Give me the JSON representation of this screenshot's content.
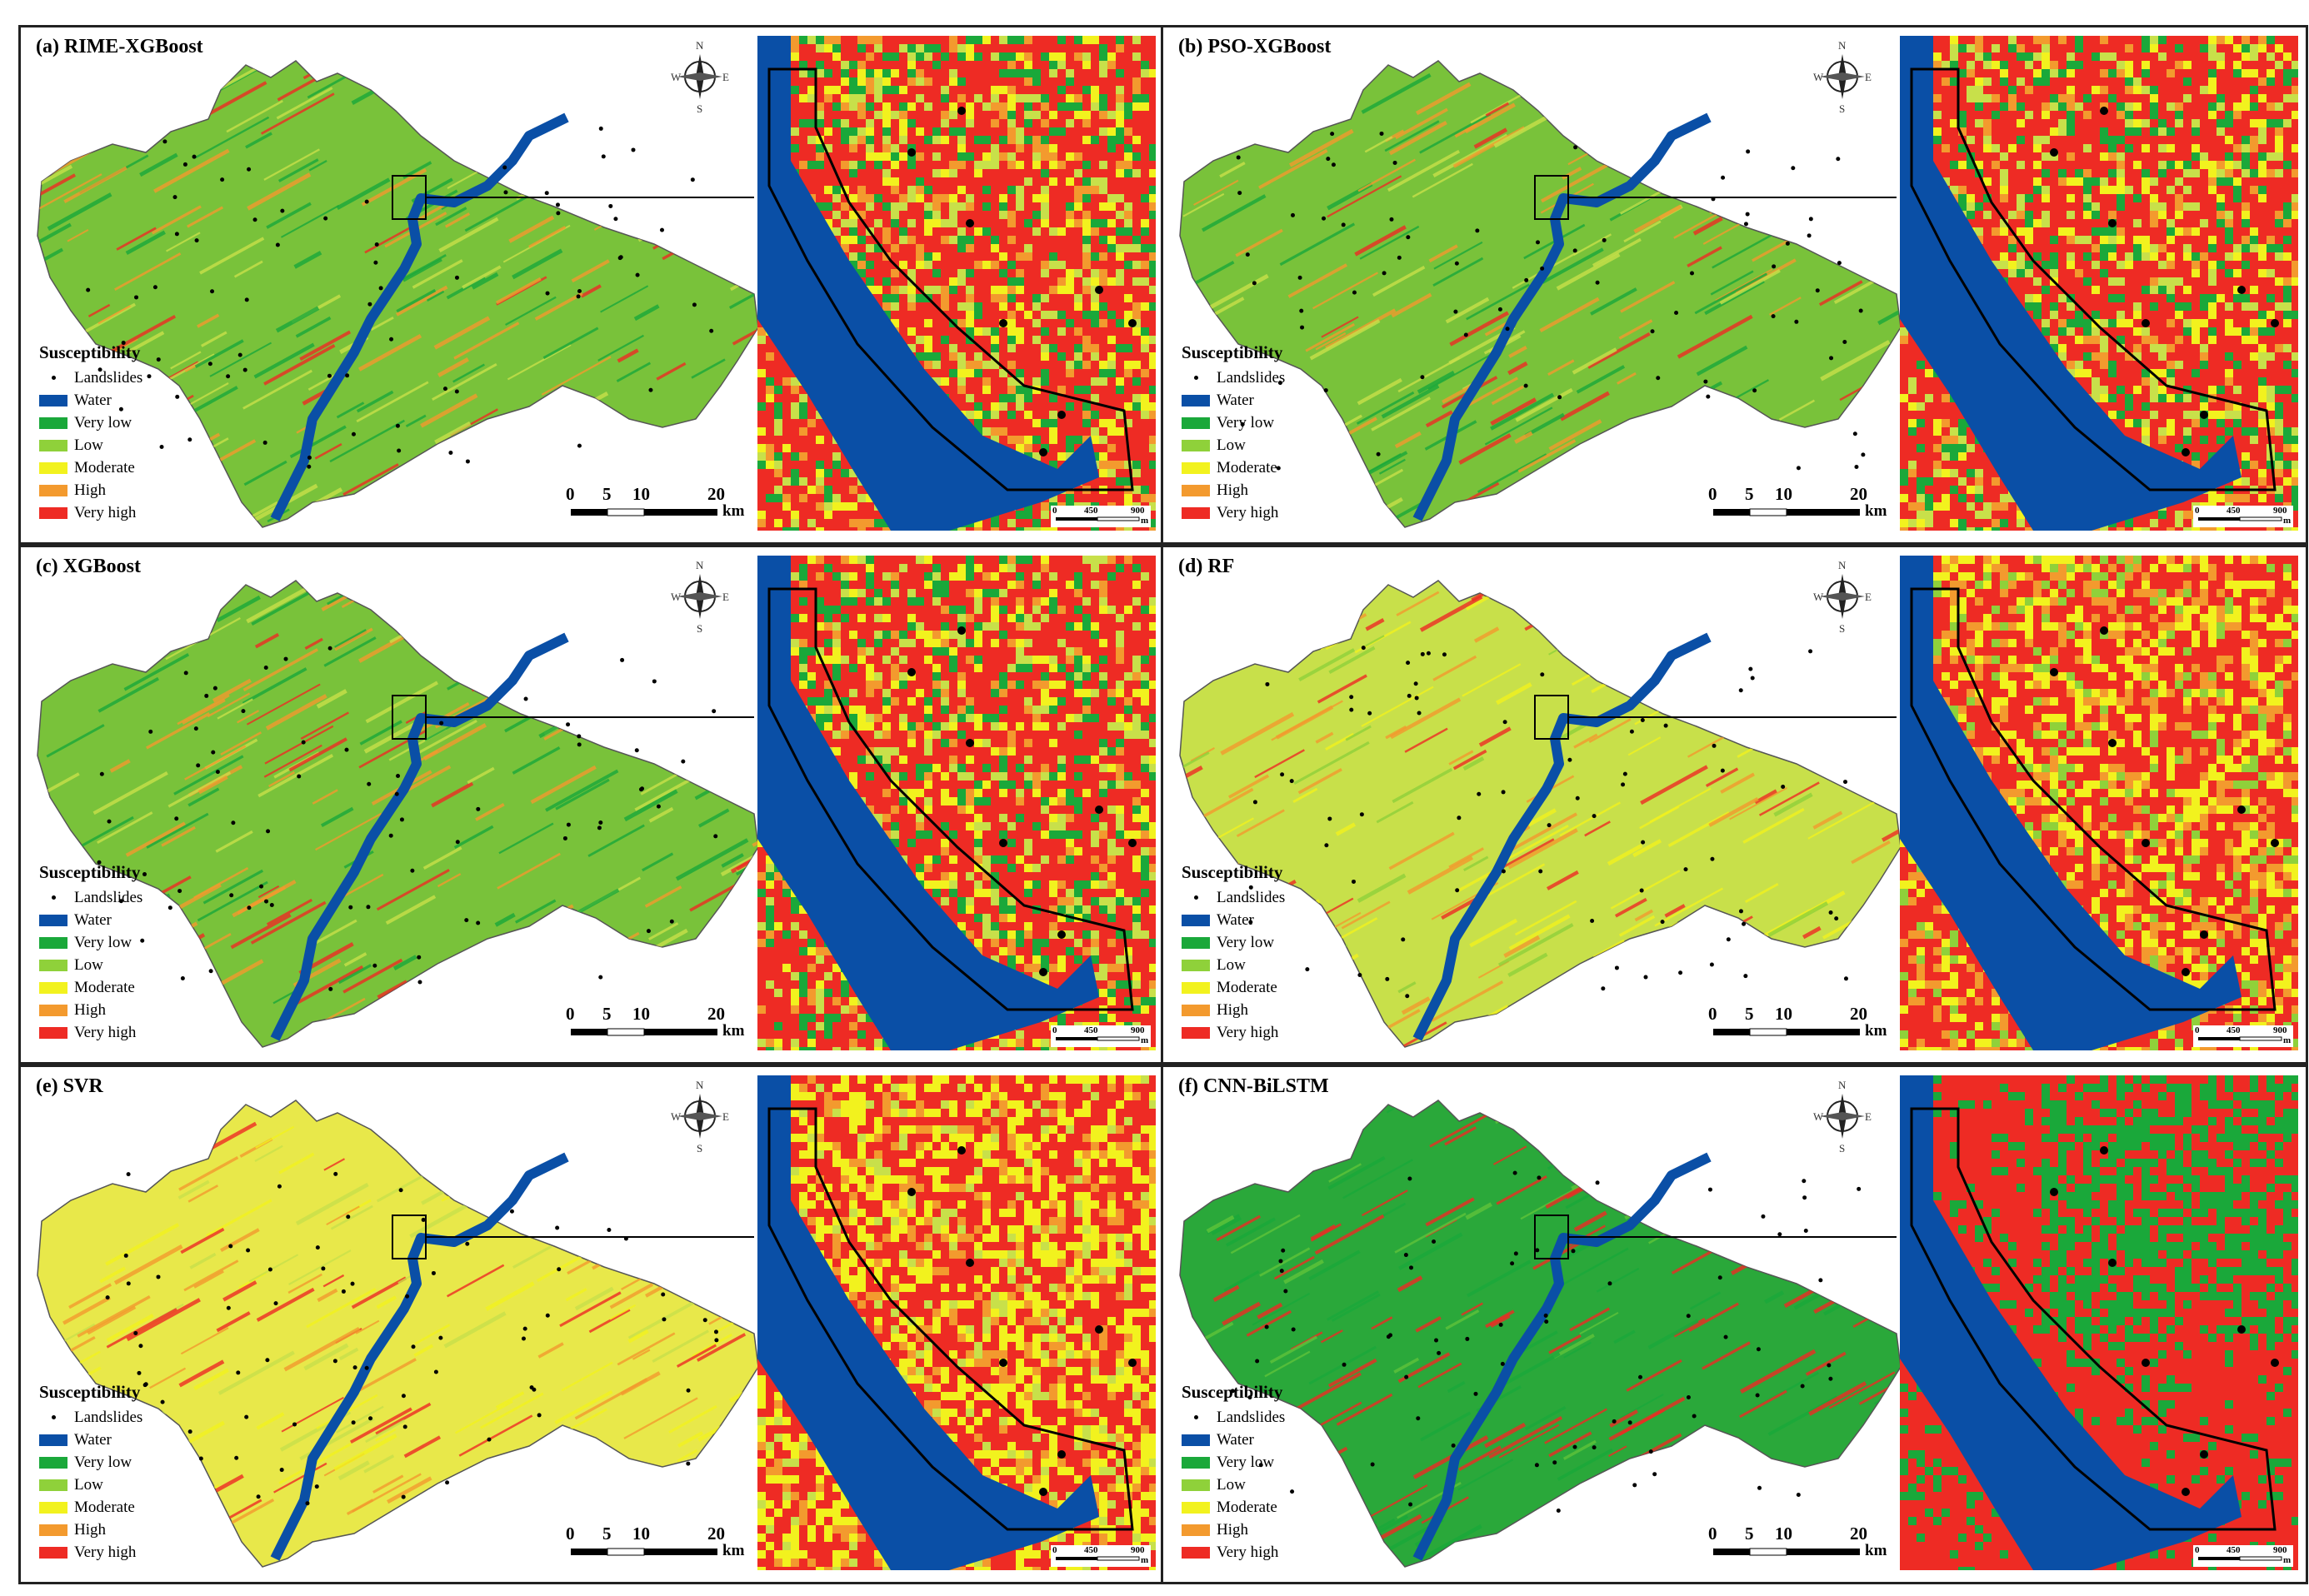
{
  "panels": [
    {
      "title": "(a)  RIME-XGBoost",
      "scheme": "mixed"
    },
    {
      "title": "(b)  PSO-XGBoost",
      "scheme": "mixed"
    },
    {
      "title": "(c)  XGBoost",
      "scheme": "mixed"
    },
    {
      "title": "(d)  RF",
      "scheme": "rf"
    },
    {
      "title": "(e)  SVR",
      "scheme": "svr"
    },
    {
      "title": "(f)  CNN-BiLSTM",
      "scheme": "cnn"
    }
  ],
  "legend": {
    "title": "Susceptibility",
    "landslides_label": "Landslides",
    "classes": [
      {
        "label": "Water",
        "color": "#0a4fa6"
      },
      {
        "label": "Very low",
        "color": "#1aa83a"
      },
      {
        "label": "Low",
        "color": "#8fd13a"
      },
      {
        "label": "Moderate",
        "color": "#f2f21e"
      },
      {
        "label": "High",
        "color": "#f39a2e"
      },
      {
        "label": "Very high",
        "color": "#ee2b24"
      }
    ]
  },
  "scale_bar": {
    "ticks": [
      "0",
      "5",
      "10",
      "20"
    ],
    "unit": "km"
  },
  "inset_scale_bar": {
    "ticks": [
      "0",
      "450",
      "900"
    ],
    "unit": "m"
  },
  "compass": {
    "n": "N",
    "s": "S",
    "e": "E",
    "w": "W"
  }
}
